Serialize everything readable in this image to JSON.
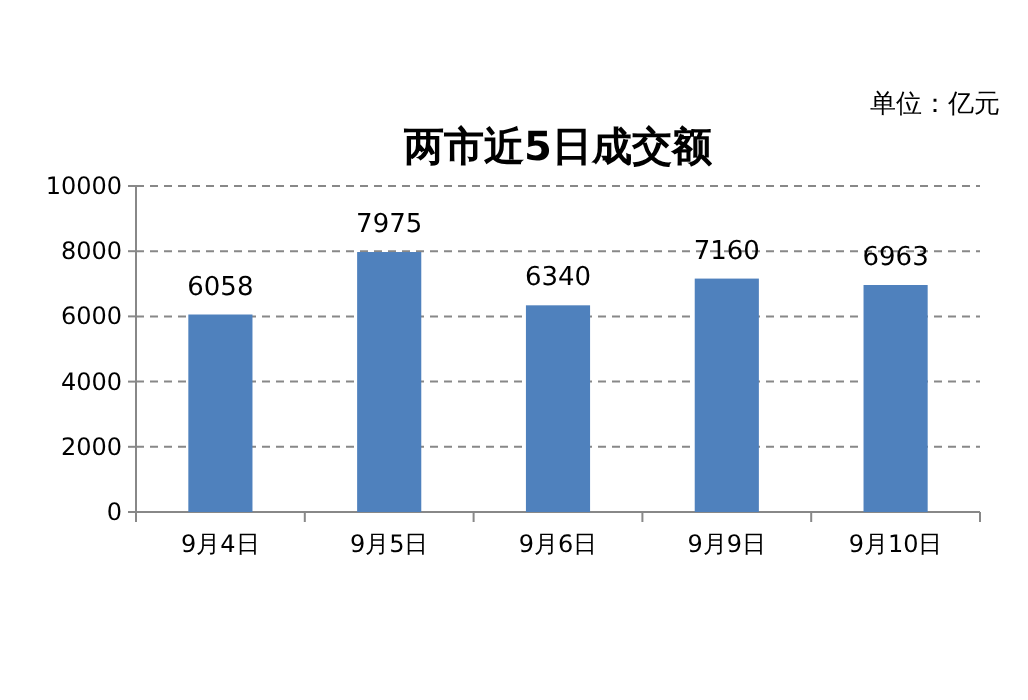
{
  "chart_data": {
    "type": "bar",
    "title": "两市近5日成交额",
    "annotations": [
      "单位：亿元"
    ],
    "categories": [
      "9月4日",
      "9月5日",
      "9月6日",
      "9月9日",
      "9月10日"
    ],
    "values": [
      6058,
      7975,
      6340,
      7160,
      6963
    ],
    "color": "#4f81bd",
    "ylim": [
      0,
      10000
    ],
    "yticks": [
      0,
      2000,
      4000,
      6000,
      8000,
      10000
    ],
    "grid": "y",
    "data_labels": true
  }
}
